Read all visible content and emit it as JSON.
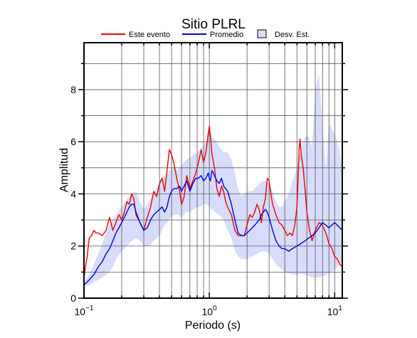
{
  "chart_data": {
    "type": "line",
    "title": "Sitio PLRL",
    "xlabel": "Periodo (s)",
    "ylabel": "Amplitud",
    "x_scale": "log",
    "xlim": [
      0.1,
      11.5
    ],
    "ylim": [
      0,
      9.8
    ],
    "x_ticks": [
      {
        "value": 0.1,
        "base": "10",
        "exp": "−1"
      },
      {
        "value": 1,
        "base": "10",
        "exp": "0"
      },
      {
        "value": 10,
        "base": "10",
        "exp": "1"
      }
    ],
    "y_ticks": [
      0,
      2,
      4,
      6,
      8
    ],
    "grid": true,
    "legend": {
      "position": "top",
      "entries": [
        {
          "label": "Este evento",
          "color": "#ee0000",
          "kind": "line"
        },
        {
          "label": "Promedio",
          "color": "#0000dd",
          "kind": "line"
        },
        {
          "label": "Desv. Est.",
          "color": "#d8dcfb",
          "kind": "patch"
        }
      ]
    },
    "series": [
      {
        "name": "Este evento",
        "color": "#ee0000",
        "x": [
          0.1,
          0.106,
          0.11,
          0.115,
          0.12,
          0.125,
          0.13,
          0.14,
          0.15,
          0.16,
          0.17,
          0.18,
          0.19,
          0.2,
          0.21,
          0.22,
          0.23,
          0.24,
          0.25,
          0.26,
          0.28,
          0.3,
          0.32,
          0.34,
          0.36,
          0.38,
          0.4,
          0.42,
          0.44,
          0.46,
          0.48,
          0.5,
          0.52,
          0.55,
          0.58,
          0.6,
          0.63,
          0.66,
          0.7,
          0.74,
          0.78,
          0.82,
          0.86,
          0.9,
          0.94,
          0.98,
          1.0,
          1.02,
          1.05,
          1.1,
          1.15,
          1.2,
          1.25,
          1.3,
          1.35,
          1.4,
          1.5,
          1.6,
          1.7,
          1.8,
          1.9,
          2.0,
          2.1,
          2.2,
          2.3,
          2.4,
          2.5,
          2.6,
          2.7,
          2.8,
          2.9,
          3.0,
          3.1,
          3.2,
          3.4,
          3.6,
          3.8,
          4.0,
          4.2,
          4.4,
          4.6,
          4.8,
          5.0,
          5.1,
          5.2,
          5.3,
          5.4,
          5.6,
          5.8,
          6.0,
          6.3,
          6.6,
          7.0,
          7.5,
          8.0,
          8.5,
          9.0,
          9.5,
          10.0,
          10.5,
          11.0,
          11.5
        ],
        "values": [
          0.8,
          1.6,
          2.3,
          2.4,
          2.6,
          2.5,
          2.5,
          2.4,
          2.6,
          3.1,
          2.6,
          2.9,
          3.2,
          3.0,
          3.3,
          3.7,
          3.6,
          4.0,
          3.8,
          3.2,
          2.9,
          2.6,
          3.1,
          3.5,
          4.1,
          3.9,
          4.4,
          4.6,
          4.1,
          4.9,
          5.7,
          5.5,
          5.2,
          4.6,
          4.1,
          3.6,
          3.9,
          4.7,
          4.2,
          4.5,
          4.8,
          5.2,
          5.7,
          5.2,
          5.6,
          6.3,
          6.6,
          6.2,
          5.5,
          5.0,
          4.2,
          3.9,
          4.3,
          4.1,
          3.7,
          3.5,
          3.2,
          2.6,
          2.4,
          2.4,
          2.4,
          2.8,
          3.2,
          3.1,
          3.3,
          3.6,
          3.4,
          2.9,
          3.5,
          3.8,
          4.6,
          4.5,
          4.0,
          3.6,
          3.2,
          2.9,
          2.8,
          2.6,
          2.4,
          2.5,
          2.4,
          2.8,
          3.5,
          4.5,
          5.7,
          6.1,
          5.5,
          5.0,
          4.2,
          3.3,
          2.6,
          2.2,
          2.6,
          2.9,
          2.8,
          2.5,
          2.1,
          1.9,
          1.6,
          1.5,
          1.3,
          1.2
        ]
      },
      {
        "name": "Promedio",
        "color": "#0000dd",
        "x": [
          0.1,
          0.11,
          0.12,
          0.13,
          0.14,
          0.15,
          0.16,
          0.17,
          0.18,
          0.19,
          0.2,
          0.21,
          0.22,
          0.23,
          0.24,
          0.25,
          0.26,
          0.28,
          0.3,
          0.32,
          0.34,
          0.36,
          0.38,
          0.4,
          0.42,
          0.44,
          0.46,
          0.48,
          0.5,
          0.52,
          0.55,
          0.58,
          0.6,
          0.63,
          0.66,
          0.7,
          0.74,
          0.78,
          0.82,
          0.86,
          0.9,
          0.94,
          0.98,
          1.0,
          1.02,
          1.05,
          1.1,
          1.15,
          1.2,
          1.25,
          1.3,
          1.35,
          1.4,
          1.5,
          1.6,
          1.7,
          1.8,
          1.9,
          2.0,
          2.1,
          2.2,
          2.3,
          2.4,
          2.5,
          2.6,
          2.7,
          2.8,
          2.9,
          3.0,
          3.2,
          3.4,
          3.6,
          3.8,
          4.0,
          4.3,
          4.6,
          5.0,
          5.4,
          5.8,
          6.2,
          6.6,
          7.0,
          7.5,
          8.0,
          8.5,
          9.0,
          9.5,
          10.0,
          10.5,
          11.0,
          11.5
        ],
        "values": [
          0.5,
          0.7,
          0.9,
          1.2,
          1.4,
          1.7,
          1.9,
          2.2,
          2.5,
          2.7,
          2.9,
          3.1,
          3.3,
          3.5,
          3.6,
          3.6,
          3.3,
          2.9,
          2.6,
          2.7,
          3.0,
          3.2,
          3.3,
          3.4,
          3.5,
          3.3,
          3.5,
          3.9,
          4.1,
          4.2,
          4.2,
          4.3,
          4.1,
          4.3,
          4.5,
          4.1,
          4.4,
          4.6,
          4.6,
          4.7,
          4.5,
          4.6,
          4.8,
          4.6,
          4.5,
          4.9,
          4.7,
          4.5,
          4.4,
          4.6,
          4.3,
          4.2,
          4.1,
          3.6,
          3.0,
          2.5,
          2.4,
          2.4,
          2.5,
          2.6,
          2.7,
          2.8,
          2.9,
          3.0,
          3.2,
          3.3,
          3.4,
          3.3,
          3.1,
          2.6,
          2.2,
          2.0,
          1.9,
          1.9,
          1.8,
          1.9,
          2.0,
          2.1,
          2.2,
          2.3,
          2.4,
          2.5,
          2.7,
          2.9,
          2.8,
          2.7,
          2.8,
          2.9,
          2.8,
          2.7,
          2.6
        ]
      }
    ],
    "std_band": {
      "name": "Desv. Est.",
      "color": "#d8dcfb",
      "x": [
        0.1,
        0.11,
        0.12,
        0.13,
        0.14,
        0.15,
        0.16,
        0.17,
        0.18,
        0.2,
        0.22,
        0.24,
        0.26,
        0.28,
        0.3,
        0.33,
        0.36,
        0.4,
        0.44,
        0.48,
        0.52,
        0.56,
        0.6,
        0.65,
        0.7,
        0.75,
        0.8,
        0.85,
        0.9,
        0.95,
        1.0,
        1.05,
        1.1,
        1.2,
        1.3,
        1.4,
        1.5,
        1.6,
        1.7,
        1.8,
        1.9,
        2.0,
        2.2,
        2.4,
        2.6,
        2.8,
        3.0,
        3.2,
        3.4,
        3.6,
        3.8,
        4.0,
        4.3,
        4.6,
        5.0,
        5.4,
        5.8,
        6.2,
        6.6,
        7.0,
        7.5,
        8.0,
        8.5,
        9.0,
        9.5,
        10.0,
        10.5,
        11.0,
        11.5
      ],
      "upper": [
        0.6,
        0.9,
        1.3,
        1.7,
        2.1,
        2.5,
        2.8,
        3.0,
        3.2,
        3.5,
        3.8,
        4.0,
        4.1,
        3.7,
        3.4,
        3.7,
        4.0,
        4.4,
        4.7,
        4.9,
        5.0,
        4.9,
        5.1,
        5.3,
        5.4,
        5.5,
        5.6,
        5.7,
        5.9,
        6.0,
        6.5,
        6.2,
        6.1,
        5.8,
        5.6,
        5.6,
        5.3,
        4.8,
        4.2,
        3.9,
        4.0,
        4.1,
        4.1,
        4.3,
        4.5,
        4.5,
        4.4,
        4.1,
        3.7,
        3.5,
        3.5,
        3.7,
        4.0,
        4.5,
        5.0,
        5.7,
        6.2,
        6.2,
        5.8,
        8.0,
        8.6,
        6.6,
        5.0,
        6.7,
        6.5,
        6.3,
        6.0,
        5.6,
        5.0
      ],
      "lower": [
        0.5,
        0.5,
        0.6,
        0.7,
        0.8,
        0.9,
        1.0,
        1.2,
        1.5,
        1.8,
        2.0,
        2.2,
        2.3,
        2.2,
        2.0,
        2.0,
        2.2,
        2.4,
        2.8,
        3.0,
        3.2,
        3.2,
        3.1,
        3.3,
        3.3,
        3.4,
        3.5,
        3.5,
        3.6,
        3.6,
        3.5,
        3.4,
        3.3,
        3.2,
        3.0,
        2.6,
        2.3,
        1.8,
        1.6,
        1.5,
        1.5,
        1.5,
        1.6,
        1.7,
        1.8,
        1.8,
        1.7,
        1.5,
        1.3,
        1.2,
        1.1,
        1.0,
        0.95,
        0.9,
        0.9,
        0.95,
        0.9,
        0.85,
        0.8,
        0.8,
        0.8,
        0.85,
        0.9,
        0.95,
        1.0,
        1.1,
        1.2,
        1.3,
        1.4
      ]
    }
  }
}
